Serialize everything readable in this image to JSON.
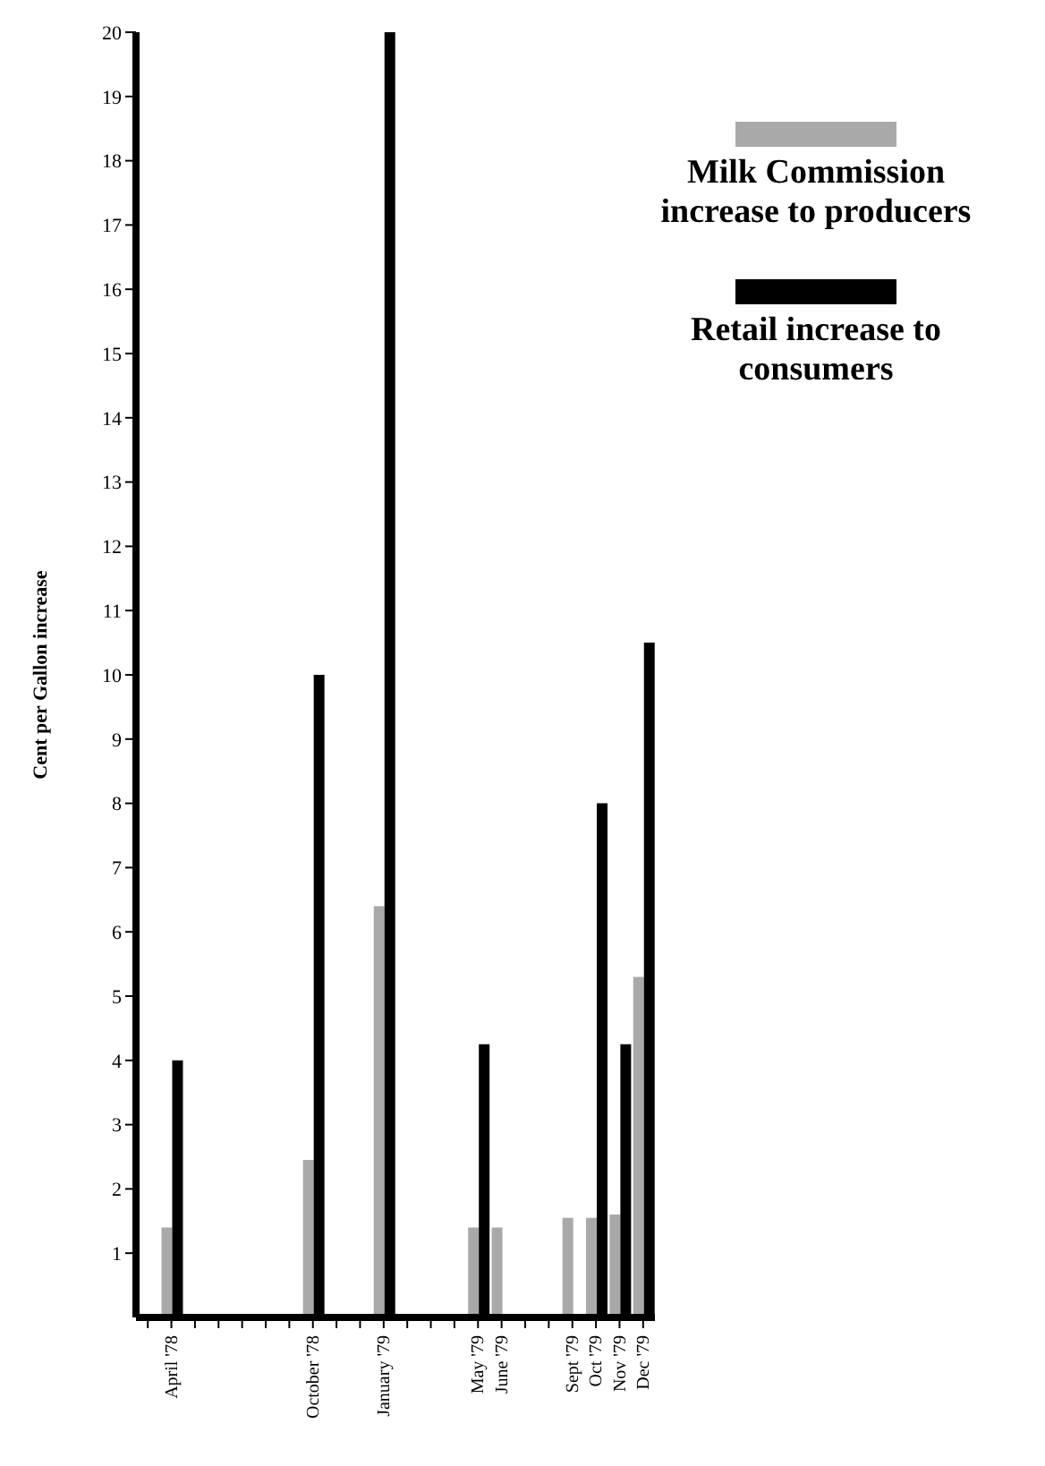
{
  "chart_data": {
    "type": "bar",
    "ylabel": "Cent per Gallon increase",
    "categories": [
      null,
      "April '78",
      null,
      null,
      null,
      null,
      null,
      "October '78",
      null,
      null,
      "January '79",
      null,
      null,
      null,
      "May '79",
      "June '79",
      null,
      null,
      "Sept '79",
      "Oct '79",
      "Nov '79",
      "Dec '79"
    ],
    "series": [
      {
        "name": "Milk Commission increase to producers",
        "color": "#a9a9a9",
        "values": [
          null,
          1.4,
          null,
          null,
          null,
          null,
          null,
          2.45,
          null,
          null,
          6.4,
          null,
          null,
          null,
          1.4,
          1.4,
          null,
          null,
          1.55,
          1.55,
          1.6,
          5.3
        ]
      },
      {
        "name": "Retail increase to consumers",
        "color": "#000000",
        "values": [
          null,
          4,
          null,
          null,
          null,
          null,
          null,
          10,
          null,
          null,
          20,
          null,
          null,
          null,
          4.25,
          null,
          null,
          null,
          null,
          8,
          4.25,
          10.5
        ]
      }
    ],
    "ylim": [
      0,
      20
    ],
    "yticks": [
      1,
      2,
      3,
      4,
      5,
      6,
      7,
      8,
      9,
      10,
      11,
      12,
      13,
      14,
      15,
      16,
      17,
      18,
      19,
      20
    ],
    "grid": false,
    "legend": "top right"
  }
}
